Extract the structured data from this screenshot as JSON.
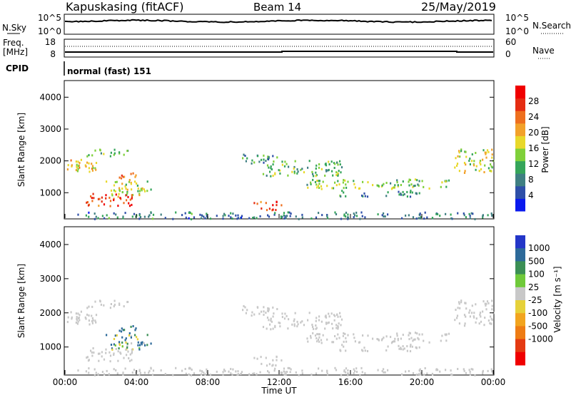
{
  "header": {
    "station": "Kapuskasing (fitACF)",
    "beam": "Beam 14",
    "date": "25/May/2019"
  },
  "noise_panel": {
    "left_label": "N.Sky",
    "right_label": "N.Search",
    "left_ticks": [
      "10^5",
      "10^0"
    ],
    "right_ticks": [
      "10^5",
      "10^0"
    ]
  },
  "freq_panel": {
    "left_label_1": "Freq.",
    "left_label_2": "[MHz]",
    "right_label": "Nave",
    "left_ticks": [
      "18",
      "8"
    ],
    "right_ticks": [
      "60",
      "0"
    ]
  },
  "cpid": {
    "label": "CPID",
    "mode": "normal (fast) 151"
  },
  "colors": {
    "power_scale": [
      "#0a1aee",
      "#2e4fa8",
      "#3f7f82",
      "#35a55a",
      "#7fd03a",
      "#e8d82a",
      "#f2a12a",
      "#ee6f1e",
      "#e52d12",
      "#f00000"
    ],
    "velocity_scale": [
      "#2336c8",
      "#2d6a9a",
      "#3b8f55",
      "#6fc93a",
      "#c8c8c8",
      "#e6d13a",
      "#f2a41e",
      "#ee7c14",
      "#e43a12",
      "#f00000"
    ]
  },
  "chart_data": [
    {
      "type": "heatmap",
      "name": "power",
      "xlabel": "",
      "ylabel": "Slant Range [km]",
      "xlim": [
        0,
        24
      ],
      "ylim": [
        200,
        4500
      ],
      "y_ticks": [
        "1000",
        "2000",
        "3000",
        "4000"
      ],
      "colorbar": {
        "label": "Power [dB]",
        "ticks": [
          "4",
          "8",
          "12",
          "16",
          "20",
          "24",
          "28"
        ]
      }
    },
    {
      "type": "heatmap",
      "name": "velocity",
      "xlabel": "Time UT",
      "ylabel": "Slant Range [km]",
      "xlim": [
        0,
        24
      ],
      "ylim": [
        200,
        4500
      ],
      "x_ticks": [
        "00:00",
        "04:00",
        "08:00",
        "12:00",
        "16:00",
        "20:00",
        "00:00"
      ],
      "y_ticks": [
        "1000",
        "2000",
        "3000",
        "4000"
      ],
      "colorbar": {
        "label": "Velocity [m s⁻¹]",
        "ticks": [
          "1000",
          "500",
          "100",
          "25",
          "-25",
          "-100",
          "-500",
          "-1000"
        ]
      }
    }
  ],
  "scatter_features": [
    {
      "t0": 0.1,
      "t1": 2.2,
      "r0": 1650,
      "r1": 2100,
      "p": 18,
      "v": 0
    },
    {
      "t0": 1.2,
      "t1": 3.5,
      "r0": 2150,
      "r1": 2400,
      "p": 12,
      "v": 0
    },
    {
      "t0": 2.2,
      "t1": 4.8,
      "r0": 950,
      "r1": 1400,
      "p": 16,
      "v": 60
    },
    {
      "t0": 1.1,
      "t1": 3.8,
      "r0": 600,
      "r1": 1000,
      "p": 27,
      "v": 0
    },
    {
      "t0": 3.0,
      "t1": 4.0,
      "r0": 1300,
      "r1": 1650,
      "p": 24,
      "v": 200
    },
    {
      "t0": 9.9,
      "t1": 12.2,
      "r0": 1950,
      "r1": 2250,
      "p": 10,
      "v": 0
    },
    {
      "t0": 11.0,
      "t1": 15.5,
      "r0": 1550,
      "r1": 2050,
      "p": 13,
      "v": 0
    },
    {
      "t0": 10.5,
      "t1": 12.1,
      "r0": 450,
      "r1": 750,
      "p": 27,
      "v": 0
    },
    {
      "t0": 13.5,
      "t1": 21.5,
      "r0": 1150,
      "r1": 1450,
      "p": 14,
      "v": 0
    },
    {
      "t0": 15.0,
      "t1": 20.0,
      "r0": 900,
      "r1": 1100,
      "p": 9,
      "v": 0
    },
    {
      "t0": 21.8,
      "t1": 24.0,
      "r0": 1650,
      "r1": 2400,
      "p": 16,
      "v": 0
    },
    {
      "t0": 0.0,
      "t1": 24.0,
      "r0": 200,
      "r1": 420,
      "p": 8,
      "v": 0
    }
  ]
}
